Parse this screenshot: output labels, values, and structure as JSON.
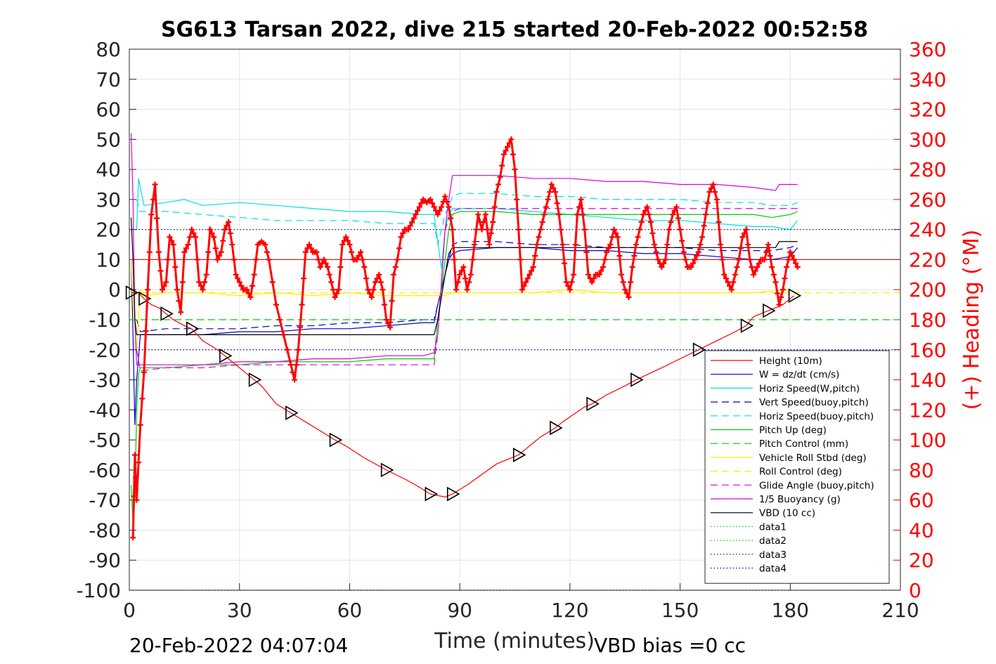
{
  "chart_data": {
    "type": "line",
    "title": "SG613 Tarsan 2022, dive 215 started 20-Feb-2022 00:52:58",
    "xlabel": "Time (minutes)",
    "ylabel_right": "(+) Heading (°M)",
    "xlim": [
      0,
      210
    ],
    "ylim": [
      -100,
      80
    ],
    "ylim_right": [
      0,
      360
    ],
    "x_ticks": [
      "0",
      "30",
      "60",
      "90",
      "120",
      "150",
      "180",
      "210"
    ],
    "y_ticks": [
      "-100",
      "-90",
      "-80",
      "-70",
      "-60",
      "-50",
      "-40",
      "-30",
      "-20",
      "-10",
      "0",
      "10",
      "20",
      "30",
      "40",
      "50",
      "60",
      "70",
      "80"
    ],
    "y_ticks_right": [
      "0",
      "20",
      "40",
      "60",
      "80",
      "100",
      "120",
      "140",
      "160",
      "180",
      "200",
      "220",
      "240",
      "260",
      "280",
      "300",
      "320",
      "340",
      "360"
    ],
    "grid": true,
    "legend_position": "bottom-right",
    "footer_left": "20-Feb-2022 04:07:04",
    "footer_right": "VBD bias =0 cc",
    "series": [
      {
        "name": "Height (10m)",
        "color": "#ff0000",
        "style": "solid",
        "x": [
          0,
          210
        ],
        "y": [
          10,
          10
        ]
      },
      {
        "name": "W = dz/dt (cm/s)",
        "color": "#0000cc",
        "style": "solid",
        "x": [
          0.5,
          1,
          1.5,
          2,
          3,
          10,
          20,
          30,
          40,
          50,
          60,
          70,
          80,
          83,
          84,
          86,
          87,
          88,
          90,
          100,
          110,
          120,
          130,
          140,
          150,
          160,
          170,
          175,
          180,
          182
        ],
        "y": [
          10,
          -15,
          -45,
          -30,
          -15,
          -15,
          -15,
          -14,
          -14,
          -13,
          -13,
          -12,
          -11,
          -11,
          -5,
          5,
          10,
          12,
          13,
          14,
          14,
          13,
          13,
          12,
          12,
          11,
          10,
          10,
          11,
          14
        ]
      },
      {
        "name": "Horiz Speed(W,pitch)",
        "color": "#00e0e0",
        "style": "solid",
        "x": [
          2,
          2.5,
          4,
          10,
          15,
          20,
          30,
          40,
          50,
          60,
          70,
          80,
          83,
          85,
          86,
          87,
          88,
          90,
          100,
          110,
          120,
          130,
          140,
          150,
          160,
          170,
          175,
          180,
          182
        ],
        "y": [
          20,
          37,
          28,
          29,
          30,
          28,
          29,
          28,
          27,
          26,
          26,
          25,
          25,
          7,
          20,
          25,
          27,
          27,
          27,
          26,
          25,
          24,
          23,
          23,
          22,
          21,
          21,
          20,
          23
        ]
      },
      {
        "name": "Vert Speed(buoy,pitch)",
        "color": "#0000cc",
        "style": "dashed",
        "x": [
          2,
          3,
          10,
          20,
          30,
          40,
          50,
          60,
          70,
          80,
          83,
          84,
          86,
          87,
          88,
          90,
          100,
          110,
          120,
          130,
          140,
          150,
          160,
          170,
          175,
          180,
          182
        ],
        "y": [
          -10,
          -14,
          -13,
          -13,
          -13,
          -12,
          -12,
          -11,
          -11,
          -10,
          -10,
          -5,
          5,
          10,
          15,
          16,
          16,
          15,
          15,
          14,
          14,
          14,
          13,
          13,
          13,
          14,
          15
        ]
      },
      {
        "name": "Horiz Speed(buoy,pitch)",
        "color": "#00e0e0",
        "style": "dashed",
        "x": [
          2,
          3,
          10,
          20,
          30,
          40,
          50,
          60,
          70,
          80,
          83,
          84,
          86,
          88,
          90,
          100,
          110,
          120,
          130,
          140,
          150,
          160,
          170,
          175,
          180,
          182
        ],
        "y": [
          30,
          26,
          26,
          25,
          24,
          23,
          23,
          23,
          22,
          22,
          22,
          15,
          25,
          31,
          32,
          32,
          31,
          31,
          30,
          30,
          30,
          29,
          29,
          28,
          28,
          29
        ]
      },
      {
        "name": "Pitch Up (deg)",
        "color": "#00cc00",
        "style": "solid",
        "x": [
          0.5,
          1,
          1.5,
          2,
          2.5,
          3,
          10,
          20,
          30,
          40,
          50,
          60,
          70,
          80,
          83,
          84,
          86,
          87,
          88,
          90,
          100,
          110,
          120,
          130,
          140,
          150,
          160,
          170,
          175,
          180,
          182
        ],
        "y": [
          -65,
          -78,
          -70,
          -40,
          -28,
          -26,
          -26,
          -25,
          -25,
          -24,
          -24,
          -24,
          -23,
          -23,
          -23,
          -10,
          10,
          20,
          25,
          26,
          26,
          25,
          25,
          25,
          25,
          25,
          25,
          25,
          24,
          25,
          26
        ]
      },
      {
        "name": "Pitch Control (mm)",
        "color": "#00cc00",
        "style": "dashed",
        "x": [
          0,
          210
        ],
        "y": [
          -10,
          -10
        ]
      },
      {
        "name": "Vehicle Roll Stbd (deg)",
        "color": "#ffee00",
        "style": "solid",
        "x": [
          0.5,
          1,
          2,
          3,
          5,
          10,
          20,
          30,
          40,
          50,
          60,
          70,
          80,
          83,
          86,
          88,
          90,
          100,
          110,
          120,
          130,
          140,
          150,
          160,
          170,
          180,
          182
        ],
        "y": [
          10,
          -5,
          -20,
          0,
          -2,
          -1,
          -1,
          -2,
          -1,
          -2,
          -1,
          -2,
          -2,
          -2,
          -2,
          -1,
          -1,
          -1,
          -1,
          0,
          -1,
          -1,
          -1,
          -1,
          -1,
          0,
          -1
        ]
      },
      {
        "name": "Roll Control (deg)",
        "color": "#ffee00",
        "style": "dashed",
        "x": [
          0,
          210
        ],
        "y": [
          -1,
          -1
        ]
      },
      {
        "name": "Glide Angle (buoy,pitch)",
        "color": "#dd00dd",
        "style": "dashed",
        "x": [
          2,
          3,
          10,
          20,
          30,
          40,
          50,
          60,
          70,
          80,
          83,
          84,
          86,
          88,
          90,
          100,
          110,
          120,
          130,
          140,
          150,
          160,
          170,
          175,
          180,
          182
        ],
        "y": [
          -20,
          -27,
          -26,
          -26,
          -25,
          -25,
          -25,
          -25,
          -25,
          -25,
          -25,
          -15,
          20,
          26,
          27,
          27,
          27,
          27,
          27,
          27,
          27,
          27,
          27,
          27,
          27,
          27
        ]
      },
      {
        "name": "1/5 Buoyancy (g)",
        "color": "#dd00dd",
        "style": "solid",
        "x": [
          0.5,
          1,
          1.5,
          2,
          3,
          10,
          20,
          30,
          40,
          50,
          60,
          70,
          80,
          83,
          84,
          86,
          87,
          88,
          90,
          100,
          110,
          120,
          130,
          140,
          150,
          160,
          170,
          176,
          177,
          182
        ],
        "y": [
          52,
          30,
          -10,
          -25,
          -25,
          -25,
          -25,
          -24,
          -24,
          -23,
          -23,
          -22,
          -22,
          -21,
          -15,
          20,
          30,
          38,
          38,
          38,
          37,
          37,
          36,
          36,
          35,
          35,
          34,
          33,
          35,
          35
        ]
      },
      {
        "name": "VBD (10 cc)",
        "color": "#000000",
        "style": "solid",
        "x": [
          0.5,
          1,
          1.5,
          2,
          3,
          10,
          20,
          30,
          40,
          50,
          60,
          70,
          80,
          83,
          84,
          86,
          87,
          88,
          90,
          100,
          110,
          120,
          130,
          140,
          150,
          160,
          170,
          176,
          177,
          182
        ],
        "y": [
          24,
          10,
          -10,
          -15,
          -15,
          -15,
          -15,
          -15,
          -15,
          -15,
          -15,
          -15,
          -15,
          -15,
          -10,
          5,
          12,
          14,
          14,
          14,
          14,
          14,
          14,
          14,
          14,
          14,
          14,
          14,
          16,
          16
        ]
      },
      {
        "name": "data1",
        "color": "#00cc00",
        "style": "dotted",
        "x": [
          0,
          210
        ],
        "y": [
          -100,
          -100
        ]
      },
      {
        "name": "data2",
        "color": "#00cc00",
        "style": "dotted",
        "x": [
          0,
          210
        ],
        "y": [
          -100,
          -100
        ]
      },
      {
        "name": "data3",
        "color": "#0000aa",
        "style": "dotted",
        "x": [
          0,
          210
        ],
        "y": [
          20,
          20
        ]
      },
      {
        "name": "data4",
        "color": "#0000aa",
        "style": "dotted",
        "x": [
          0,
          210
        ],
        "y": [
          -20,
          -20
        ]
      }
    ],
    "depth_series": {
      "color": "#ff0000",
      "marker": "triangle-right",
      "marker_color": "#000000",
      "x": [
        0.5,
        1.5,
        2.5,
        4,
        6,
        8,
        10,
        12,
        15,
        17,
        20,
        24,
        26,
        28,
        30,
        34,
        36,
        40,
        44,
        48,
        52,
        56,
        59,
        64,
        70,
        75,
        78,
        82,
        84,
        86,
        88,
        92,
        100,
        106,
        108,
        112,
        116,
        118,
        124,
        126,
        130,
        135,
        138,
        145,
        150,
        155,
        160,
        165,
        168,
        170,
        172,
        174,
        176,
        178,
        181
      ],
      "y": [
        -1,
        -1,
        -1,
        -3,
        -5,
        -6,
        -8,
        -10,
        -12,
        -13,
        -17,
        -20,
        -22,
        -24,
        -26,
        -30,
        -32,
        -38,
        -41,
        -44,
        -47,
        -50,
        -52,
        -56,
        -60,
        -63,
        -65,
        -68,
        -68.5,
        -69,
        -68,
        -65,
        -58,
        -55,
        -53,
        -49,
        -46,
        -44,
        -39,
        -38,
        -35,
        -32,
        -30,
        -26,
        -23,
        -20,
        -17,
        -14,
        -12,
        -9,
        -8,
        -7,
        -6,
        -5,
        -2
      ]
    },
    "heading_series": {
      "name": "(+) Heading (°M)",
      "color": "#ff0000",
      "marker": "plus",
      "axis": "right",
      "x": [
        1,
        1.5,
        2,
        3,
        4,
        5,
        6,
        7,
        8,
        9,
        10,
        11,
        12,
        13,
        14,
        15,
        16,
        17,
        18,
        19,
        20,
        21,
        22,
        23,
        24,
        25,
        26,
        27,
        28,
        29,
        30,
        31,
        32,
        33,
        34,
        35,
        36,
        37,
        38,
        40,
        42,
        44,
        45,
        46,
        47,
        48,
        49,
        50,
        51,
        52,
        53,
        54,
        55,
        56,
        57,
        58,
        59,
        60,
        61,
        62,
        63,
        64,
        65,
        66,
        67,
        68,
        69,
        70,
        71,
        72,
        73,
        74,
        75,
        76,
        77,
        78,
        79,
        80,
        81,
        82,
        83,
        84,
        85,
        86,
        87,
        88,
        89,
        90,
        91,
        92,
        93,
        94,
        95,
        96,
        97,
        98,
        99,
        100,
        101,
        102,
        103,
        104,
        105,
        106,
        107,
        108,
        109,
        110,
        111,
        112,
        113,
        114,
        115,
        116,
        117,
        118,
        119,
        120,
        121,
        122,
        123,
        124,
        125,
        126,
        127,
        128,
        129,
        130,
        131,
        132,
        133,
        134,
        135,
        136,
        137,
        138,
        139,
        140,
        141,
        142,
        143,
        144,
        145,
        146,
        147,
        148,
        149,
        150,
        151,
        152,
        153,
        154,
        155,
        156,
        157,
        158,
        159,
        160,
        161,
        162,
        163,
        164,
        165,
        166,
        167,
        168,
        169,
        170,
        171,
        172,
        173,
        174,
        175,
        176,
        177,
        178,
        179,
        180,
        181,
        182
      ],
      "y": [
        35,
        90,
        60,
        110,
        145,
        200,
        250,
        270,
        225,
        200,
        205,
        235,
        230,
        200,
        185,
        225,
        230,
        240,
        235,
        205,
        200,
        210,
        240,
        235,
        220,
        225,
        240,
        245,
        230,
        210,
        205,
        200,
        200,
        195,
        210,
        230,
        232,
        230,
        220,
        190,
        170,
        150,
        140,
        160,
        190,
        225,
        230,
        225,
        225,
        215,
        220,
        215,
        205,
        195,
        200,
        230,
        235,
        230,
        220,
        220,
        225,
        215,
        200,
        195,
        205,
        210,
        200,
        180,
        175,
        210,
        220,
        235,
        240,
        240,
        245,
        250,
        255,
        260,
        258,
        260,
        255,
        250,
        255,
        262,
        255,
        240,
        200,
        210,
        215,
        200,
        210,
        230,
        250,
        240,
        250,
        230,
        245,
        265,
        275,
        290,
        295,
        300,
        280,
        240,
        200,
        205,
        210,
        215,
        230,
        240,
        250,
        260,
        270,
        265,
        250,
        230,
        205,
        200,
        210,
        250,
        260,
        240,
        210,
        205,
        210,
        210,
        215,
        225,
        230,
        240,
        235,
        210,
        200,
        195,
        215,
        230,
        240,
        250,
        255,
        245,
        230,
        220,
        215,
        220,
        240,
        250,
        255,
        240,
        225,
        215,
        215,
        220,
        225,
        235,
        250,
        265,
        270,
        260,
        230,
        210,
        205,
        200,
        210,
        220,
        235,
        240,
        220,
        210,
        215,
        220,
        220,
        230,
        215,
        205,
        190,
        200,
        215,
        225,
        220,
        215
      ]
    }
  }
}
